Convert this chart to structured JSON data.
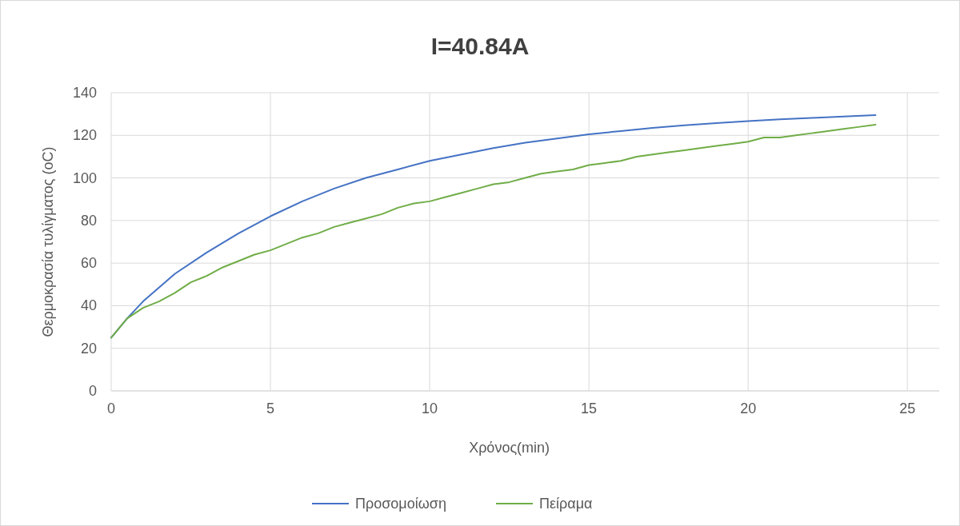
{
  "chart_data": {
    "type": "line",
    "title": "I=40.84A",
    "xlabel": "Χρόνος(min)",
    "ylabel": "Θερμοκρασία τυλίγματος (oC)",
    "xlim": [
      0,
      26
    ],
    "xticks": [
      0,
      5,
      10,
      15,
      20,
      25
    ],
    "ylim": [
      0,
      140
    ],
    "yticks": [
      0,
      20,
      40,
      60,
      80,
      100,
      120,
      140
    ],
    "grid": true,
    "legend": "bottom",
    "marker": "none",
    "line_style": "solid",
    "series": [
      {
        "name": "Προσομοίωση",
        "color": "#4472c4",
        "x": [
          0,
          0.5,
          1,
          2,
          3,
          4,
          5,
          6,
          7,
          8,
          9,
          10,
          11,
          12,
          13,
          14,
          15,
          16,
          17,
          18,
          19,
          20,
          21,
          22,
          23,
          24
        ],
        "values": [
          25,
          34,
          42,
          55,
          65,
          74,
          82,
          89,
          95,
          100,
          104,
          108,
          111,
          114,
          116.5,
          118.5,
          120.5,
          122,
          123.5,
          124.7,
          125.7,
          126.7,
          127.5,
          128.2,
          128.8,
          129.5
        ]
      },
      {
        "name": "Πείραμα",
        "color": "#70ad47",
        "x": [
          0,
          0.5,
          1,
          1.5,
          2,
          2.5,
          3,
          3.5,
          4,
          4.5,
          5,
          5.5,
          6,
          6.5,
          7,
          7.5,
          8,
          8.5,
          9,
          9.5,
          10,
          10.5,
          11,
          11.5,
          12,
          12.5,
          13,
          13.5,
          14,
          14.5,
          15,
          15.5,
          16,
          16.5,
          17,
          17.5,
          18,
          18.5,
          19,
          19.5,
          20,
          20.5,
          21,
          21.5,
          22,
          22.5,
          23,
          23.5,
          24
        ],
        "values": [
          25,
          34,
          39,
          42,
          46,
          51,
          54,
          58,
          61,
          64,
          66,
          69,
          72,
          74,
          77,
          79,
          81,
          83,
          86,
          88,
          89,
          91,
          93,
          95,
          97,
          98,
          100,
          102,
          103,
          104,
          106,
          107,
          108,
          110,
          111,
          112,
          113,
          114,
          115,
          116,
          117,
          119,
          119,
          120,
          121,
          122,
          123,
          124,
          125
        ]
      }
    ]
  }
}
